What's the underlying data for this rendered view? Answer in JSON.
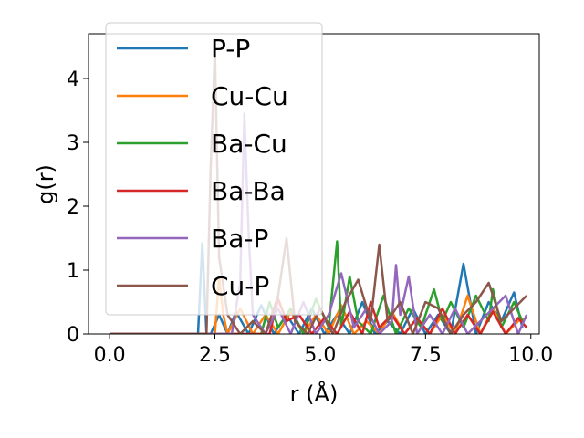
{
  "chart_data": {
    "type": "line",
    "title": "",
    "xlabel": "r (Å)",
    "ylabel": "g(r)",
    "xlim": [
      -0.5,
      10.2
    ],
    "ylim": [
      0,
      4.7
    ],
    "xticks": [
      0.0,
      2.5,
      5.0,
      7.5,
      10.0
    ],
    "xtick_labels": [
      "0.0",
      "2.5",
      "5.0",
      "7.5",
      "10.0"
    ],
    "yticks": [
      0,
      1,
      2,
      3,
      4
    ],
    "ytick_labels": [
      "0",
      "1",
      "2",
      "3",
      "4"
    ],
    "grid": false,
    "legend_position": "top-left",
    "series": [
      {
        "name": "P-P",
        "color": "#1f77b4",
        "x": [
          0,
          2.1,
          2.2,
          2.3,
          2.4,
          2.6,
          2.8,
          3.0,
          3.3,
          3.6,
          3.9,
          4.2,
          4.5,
          4.8,
          5.1,
          5.4,
          5.7,
          6.0,
          6.3,
          6.6,
          6.9,
          7.2,
          7.5,
          7.8,
          8.1,
          8.4,
          8.7,
          9.0,
          9.3,
          9.6,
          9.8
        ],
        "y": [
          0,
          0,
          1.42,
          0,
          0,
          0.3,
          0,
          0.35,
          0,
          0.45,
          0,
          0.3,
          0,
          0.4,
          0,
          0.3,
          0,
          0.5,
          0,
          0.2,
          0,
          0.4,
          0,
          0.3,
          0,
          1.1,
          0,
          0.5,
          0.2,
          0.65,
          0.1
        ]
      },
      {
        "name": "Cu-Cu",
        "color": "#ff7f0e",
        "x": [
          0,
          2.5,
          2.6,
          2.7,
          2.8,
          3.1,
          3.4,
          3.7,
          4.0,
          4.3,
          4.6,
          4.9,
          5.2,
          5.5,
          5.8,
          6.1,
          6.4,
          6.7,
          7.0,
          7.3,
          7.6,
          7.9,
          8.2,
          8.5,
          8.8,
          9.1,
          9.4,
          9.7,
          9.9
        ],
        "y": [
          0,
          0,
          0.9,
          0.3,
          0,
          0.4,
          0,
          0.3,
          0,
          0.35,
          0,
          0.3,
          0,
          0.45,
          0,
          0.2,
          0,
          0.35,
          0,
          0.25,
          0,
          0.3,
          0,
          0.6,
          0,
          0.4,
          0,
          0.2,
          0.25
        ]
      },
      {
        "name": "Ba-Cu",
        "color": "#2ca02c",
        "x": [
          0,
          3.6,
          3.8,
          4.0,
          4.3,
          4.6,
          4.9,
          5.2,
          5.4,
          5.5,
          5.7,
          5.9,
          6.2,
          6.5,
          6.8,
          7.1,
          7.4,
          7.7,
          7.9,
          8.1,
          8.4,
          8.7,
          9.0,
          9.1,
          9.3,
          9.6,
          9.8
        ],
        "y": [
          0,
          0,
          0.5,
          0.1,
          0.4,
          0,
          0.55,
          0.1,
          1.45,
          0.1,
          0.9,
          0.2,
          0,
          0.6,
          0,
          0.4,
          0.1,
          0.7,
          0.2,
          0.5,
          0.1,
          0.6,
          0.2,
          0.7,
          0.1,
          0.5,
          0.2
        ]
      },
      {
        "name": "Ba-Ba",
        "color": "#d62728",
        "x": [
          0,
          3.8,
          4.0,
          4.2,
          4.5,
          4.8,
          5.1,
          5.4,
          5.7,
          6.0,
          6.2,
          6.4,
          6.7,
          7.0,
          7.3,
          7.6,
          7.9,
          8.2,
          8.5,
          8.8,
          9.1,
          9.4,
          9.7,
          9.9
        ],
        "y": [
          0,
          0,
          0.55,
          0.2,
          0.3,
          0,
          0.25,
          0,
          0.35,
          0,
          0.5,
          0.1,
          0.3,
          0,
          0.25,
          0,
          0.4,
          0,
          0.3,
          0,
          0.35,
          0,
          0.25,
          0.1
        ]
      },
      {
        "name": "Ba-P",
        "color": "#9467bd",
        "x": [
          0,
          2.9,
          3.1,
          3.2,
          3.3,
          3.4,
          3.7,
          4.0,
          4.3,
          4.6,
          4.9,
          5.2,
          5.5,
          5.8,
          6.1,
          6.4,
          6.7,
          6.8,
          6.9,
          7.1,
          7.3,
          7.6,
          7.9,
          8.2,
          8.5,
          8.8,
          9.1,
          9.4,
          9.7,
          9.9
        ],
        "y": [
          0,
          0,
          0.8,
          3.45,
          1.6,
          0.3,
          0,
          0.4,
          0,
          0.5,
          0,
          0.3,
          0.95,
          0.1,
          0.4,
          0,
          0.2,
          1.08,
          0.3,
          0.9,
          0,
          0.3,
          0,
          0.4,
          0,
          0.2,
          0.4,
          0.6,
          0,
          0.3
        ]
      },
      {
        "name": "Cu-P",
        "color": "#8c564b",
        "x": [
          0,
          2.3,
          2.4,
          2.5,
          2.6,
          2.8,
          3.1,
          3.4,
          3.7,
          4.0,
          4.2,
          4.4,
          4.7,
          5.0,
          5.3,
          5.6,
          5.9,
          6.2,
          6.4,
          6.6,
          6.9,
          7.2,
          7.5,
          7.8,
          8.1,
          8.4,
          8.7,
          9.0,
          9.3,
          9.6,
          9.9
        ],
        "y": [
          0,
          0,
          2.62,
          4.45,
          1.2,
          0.3,
          0,
          0.2,
          0,
          0.6,
          1.5,
          0.2,
          0,
          0.4,
          0,
          0.5,
          0.85,
          0.2,
          1.4,
          0.2,
          0.5,
          0,
          0.5,
          0.4,
          0,
          0.3,
          0.5,
          0.8,
          0.2,
          0.4,
          0.6
        ]
      }
    ]
  }
}
